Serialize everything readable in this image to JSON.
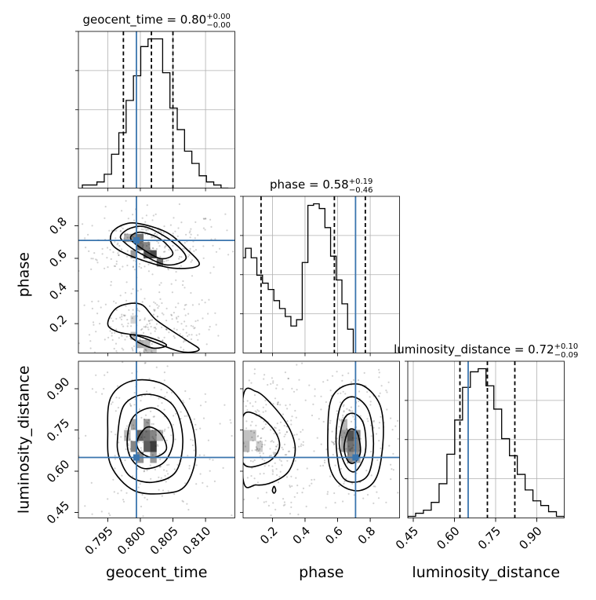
{
  "chart_data": {
    "type": "corner",
    "parameters": [
      {
        "name": "geocent_time",
        "label": "geocent_time",
        "range": [
          0.7905,
          0.8145
        ],
        "ticks": [
          0.795,
          0.8,
          0.805,
          0.81
        ],
        "tick_labels": [
          "0.795",
          "0.800",
          "0.805",
          "0.810"
        ],
        "truth": 0.7994,
        "quantiles": [
          0.7974,
          0.8017,
          0.805
        ],
        "title": {
          "main": "geocent_time = 0.80",
          "sup": "+0.00",
          "sub": "−0.00"
        },
        "histogram": {
          "x0": 0.7911,
          "step": 0.00112,
          "heights": [
            2,
            2,
            4,
            9,
            22,
            36,
            57,
            73,
            92,
            97,
            97,
            75,
            52,
            38,
            24,
            16,
            8,
            4,
            2,
            0
          ]
        }
      },
      {
        "name": "phase",
        "label": "phase",
        "range": [
          0.02,
          0.98
        ],
        "ticks": [
          0.2,
          0.4,
          0.6,
          0.8
        ],
        "tick_labels": [
          "0.2",
          "0.4",
          "0.6",
          "0.8"
        ],
        "truth": 0.71,
        "quantiles": [
          0.13,
          0.58,
          0.77
        ],
        "title": {
          "main": "phase = 0.58",
          "sup": "+0.19",
          "sub": "−0.46"
        },
        "histogram": {
          "x0": 0.0,
          "step": 0.0348,
          "heights": [
            60,
            66,
            60,
            49,
            44,
            40,
            33,
            28,
            23,
            17,
            21,
            57,
            93,
            94,
            91,
            79,
            61,
            46,
            31,
            15
          ]
        }
      },
      {
        "name": "luminosity_distance",
        "label": "luminosity_distance",
        "range": [
          0.43,
          1.0
        ],
        "ticks": [
          0.45,
          0.6,
          0.75,
          0.9
        ],
        "tick_labels": [
          "0.45",
          "0.60",
          "0.75",
          "0.90"
        ],
        "truth": 0.65,
        "quantiles": [
          0.62,
          0.72,
          0.82
        ],
        "title": {
          "main": "luminosity_distance = 0.72",
          "sup": "+0.10",
          "sub": "−0.09"
        },
        "histogram": {
          "x0": 0.43,
          "step": 0.0285,
          "heights": [
            1,
            3,
            5,
            10,
            22,
            41,
            63,
            84,
            94,
            96,
            85,
            70,
            51,
            40,
            28,
            18,
            11,
            8,
            4,
            1
          ]
        }
      }
    ],
    "contours": {
      "phase_vs_geocent_time": [
        [
          [
            0.7955,
            0.745
          ],
          [
            0.797,
            0.8
          ],
          [
            0.7995,
            0.815
          ],
          [
            0.804,
            0.76
          ],
          [
            0.807,
            0.66
          ],
          [
            0.809,
            0.56
          ],
          [
            0.805,
            0.54
          ],
          [
            0.7995,
            0.6
          ],
          [
            0.796,
            0.67
          ]
        ],
        [
          [
            0.797,
            0.74
          ],
          [
            0.7985,
            0.785
          ],
          [
            0.801,
            0.79
          ],
          [
            0.805,
            0.7
          ],
          [
            0.807,
            0.6
          ],
          [
            0.804,
            0.56
          ],
          [
            0.8,
            0.63
          ],
          [
            0.7975,
            0.7
          ]
        ],
        [
          [
            0.7985,
            0.73
          ],
          [
            0.8,
            0.76
          ],
          [
            0.803,
            0.72
          ],
          [
            0.805,
            0.63
          ],
          [
            0.803,
            0.6
          ],
          [
            0.7995,
            0.68
          ]
        ],
        [
          [
            0.795,
            0.2
          ],
          [
            0.7965,
            0.3
          ],
          [
            0.8,
            0.32
          ],
          [
            0.8025,
            0.22
          ],
          [
            0.807,
            0.1
          ],
          [
            0.809,
            0.04
          ],
          [
            0.806,
            0.03
          ],
          [
            0.8,
            0.12
          ],
          [
            0.7965,
            0.15
          ]
        ],
        [
          [
            0.7985,
            0.13
          ],
          [
            0.801,
            0.12
          ],
          [
            0.804,
            0.07
          ],
          [
            0.802,
            0.05
          ],
          [
            0.7995,
            0.09
          ]
        ]
      ],
      "luminosity_distance_vs_geocent_time": [
        [
          [
            0.795,
            0.74
          ],
          [
            0.7955,
            0.87
          ],
          [
            0.799,
            0.93
          ],
          [
            0.804,
            0.91
          ],
          [
            0.8075,
            0.8
          ],
          [
            0.8085,
            0.66
          ],
          [
            0.807,
            0.55
          ],
          [
            0.804,
            0.52
          ],
          [
            0.799,
            0.53
          ],
          [
            0.7955,
            0.62
          ]
        ],
        [
          [
            0.7965,
            0.72
          ],
          [
            0.7975,
            0.84
          ],
          [
            0.801,
            0.88
          ],
          [
            0.805,
            0.84
          ],
          [
            0.8065,
            0.72
          ],
          [
            0.8055,
            0.6
          ],
          [
            0.802,
            0.56
          ],
          [
            0.7985,
            0.58
          ],
          [
            0.7968,
            0.65
          ]
        ],
        [
          [
            0.798,
            0.72
          ],
          [
            0.799,
            0.8
          ],
          [
            0.802,
            0.83
          ],
          [
            0.8045,
            0.78
          ],
          [
            0.805,
            0.7
          ],
          [
            0.8035,
            0.63
          ],
          [
            0.8005,
            0.61
          ],
          [
            0.7985,
            0.65
          ]
        ],
        [
          [
            0.7995,
            0.71
          ],
          [
            0.801,
            0.76
          ],
          [
            0.803,
            0.74
          ],
          [
            0.804,
            0.68
          ],
          [
            0.802,
            0.65
          ],
          [
            0.8,
            0.67
          ]
        ]
      ],
      "luminosity_distance_vs_phase": [
        [
          [
            0.02,
            0.87
          ],
          [
            0.1,
            0.89
          ],
          [
            0.2,
            0.84
          ],
          [
            0.3,
            0.76
          ],
          [
            0.34,
            0.68
          ],
          [
            0.3,
            0.6
          ],
          [
            0.2,
            0.56
          ],
          [
            0.1,
            0.55
          ],
          [
            0.02,
            0.57
          ]
        ],
        [
          [
            0.02,
            0.8
          ],
          [
            0.12,
            0.8
          ],
          [
            0.22,
            0.74
          ],
          [
            0.24,
            0.68
          ],
          [
            0.16,
            0.63
          ],
          [
            0.02,
            0.63
          ]
        ],
        [
          [
            0.54,
            0.75
          ],
          [
            0.56,
            0.86
          ],
          [
            0.64,
            0.91
          ],
          [
            0.76,
            0.91
          ],
          [
            0.86,
            0.84
          ],
          [
            0.88,
            0.72
          ],
          [
            0.84,
            0.58
          ],
          [
            0.74,
            0.53
          ],
          [
            0.62,
            0.55
          ],
          [
            0.55,
            0.62
          ]
        ],
        [
          [
            0.59,
            0.72
          ],
          [
            0.62,
            0.84
          ],
          [
            0.7,
            0.87
          ],
          [
            0.79,
            0.82
          ],
          [
            0.82,
            0.7
          ],
          [
            0.79,
            0.59
          ],
          [
            0.7,
            0.56
          ],
          [
            0.62,
            0.59
          ]
        ],
        [
          [
            0.61,
            0.7
          ],
          [
            0.64,
            0.79
          ],
          [
            0.7,
            0.81
          ],
          [
            0.76,
            0.77
          ],
          [
            0.77,
            0.67
          ],
          [
            0.71,
            0.6
          ],
          [
            0.65,
            0.62
          ]
        ],
        [
          [
            0.64,
            0.69
          ],
          [
            0.67,
            0.75
          ],
          [
            0.72,
            0.74
          ],
          [
            0.74,
            0.67
          ],
          [
            0.7,
            0.63
          ],
          [
            0.66,
            0.64
          ]
        ],
        [
          [
            0.2,
            0.53
          ],
          [
            0.21,
            0.52
          ],
          [
            0.22,
            0.53
          ],
          [
            0.21,
            0.545
          ]
        ]
      ]
    },
    "density_cells": {
      "phase_vs_geocent_time": [
        [
          0.7985,
          0.6,
          0.001,
          0.05,
          0.5
        ],
        [
          0.7995,
          0.65,
          0.001,
          0.05,
          0.7
        ],
        [
          0.8005,
          0.6,
          0.001,
          0.05,
          0.8
        ],
        [
          0.8015,
          0.6,
          0.001,
          0.05,
          0.9
        ],
        [
          0.8025,
          0.55,
          0.001,
          0.05,
          0.7
        ],
        [
          0.7975,
          0.7,
          0.001,
          0.05,
          0.4
        ],
        [
          0.7985,
          0.7,
          0.001,
          0.05,
          0.6
        ],
        [
          0.7995,
          0.7,
          0.001,
          0.05,
          0.7
        ],
        [
          0.8005,
          0.65,
          0.001,
          0.05,
          0.6
        ],
        [
          0.7985,
          0.1,
          0.001,
          0.05,
          0.3
        ],
        [
          0.7995,
          0.05,
          0.001,
          0.05,
          0.4
        ],
        [
          0.8005,
          0.05,
          0.001,
          0.05,
          0.35
        ],
        [
          0.8015,
          0.0,
          0.001,
          0.05,
          0.3
        ],
        [
          0.7985,
          0.2,
          0.001,
          0.05,
          0.2
        ],
        [
          0.8005,
          0.0,
          0.001,
          0.05,
          0.3
        ]
      ],
      "luminosity_distance_vs_geocent_time": [
        [
          0.7985,
          0.67,
          0.001,
          0.04,
          0.6
        ],
        [
          0.7995,
          0.71,
          0.001,
          0.04,
          0.75
        ],
        [
          0.8005,
          0.67,
          0.001,
          0.04,
          0.8
        ],
        [
          0.8015,
          0.67,
          0.001,
          0.04,
          0.95
        ],
        [
          0.8005,
          0.71,
          0.001,
          0.04,
          0.7
        ],
        [
          0.7995,
          0.63,
          0.001,
          0.04,
          0.55
        ],
        [
          0.8015,
          0.71,
          0.001,
          0.04,
          0.6
        ],
        [
          0.7985,
          0.75,
          0.001,
          0.04,
          0.45
        ],
        [
          0.8005,
          0.75,
          0.001,
          0.04,
          0.5
        ],
        [
          0.8015,
          0.63,
          0.001,
          0.04,
          0.5
        ],
        [
          0.7975,
          0.71,
          0.001,
          0.04,
          0.35
        ],
        [
          0.8025,
          0.71,
          0.001,
          0.04,
          0.35
        ]
      ],
      "luminosity_distance_vs_phase": [
        [
          0.66,
          0.67,
          0.04,
          0.04,
          0.7
        ],
        [
          0.66,
          0.71,
          0.04,
          0.04,
          0.85
        ],
        [
          0.7,
          0.71,
          0.04,
          0.04,
          0.6
        ],
        [
          0.62,
          0.71,
          0.04,
          0.04,
          0.5
        ],
        [
          0.66,
          0.63,
          0.04,
          0.04,
          0.55
        ],
        [
          0.7,
          0.67,
          0.04,
          0.04,
          0.6
        ],
        [
          0.62,
          0.67,
          0.04,
          0.04,
          0.45
        ],
        [
          0.7,
          0.63,
          0.04,
          0.04,
          0.4
        ],
        [
          0.62,
          0.75,
          0.04,
          0.04,
          0.35
        ],
        [
          0.02,
          0.67,
          0.04,
          0.04,
          0.35
        ],
        [
          0.06,
          0.71,
          0.04,
          0.04,
          0.3
        ],
        [
          0.1,
          0.67,
          0.04,
          0.04,
          0.25
        ],
        [
          0.02,
          0.71,
          0.04,
          0.04,
          0.3
        ]
      ]
    },
    "truth_color": "#3a75ae",
    "line_color": "#000000",
    "grid": true
  }
}
